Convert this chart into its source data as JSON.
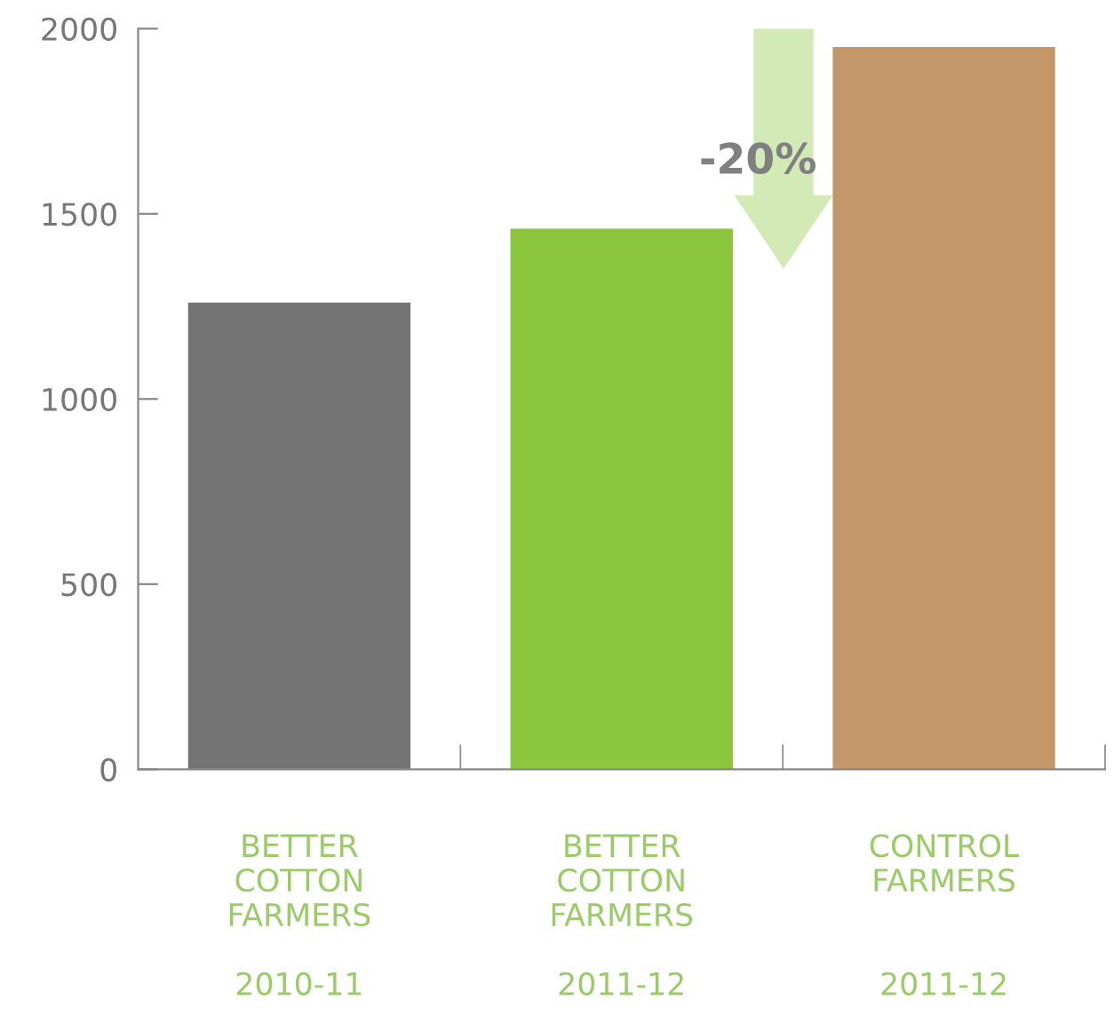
{
  "chart_data": {
    "type": "bar",
    "categories": [
      "BETTER\nCOTTON\nFARMERS\n\n2010-11",
      "BETTER\nCOTTON\nFARMERS\n\n2011-12",
      "CONTROL\nFARMERS\n\n\n2011-12"
    ],
    "values": [
      1260,
      1460,
      1950
    ],
    "colors": [
      "#747474",
      "#8cc63f",
      "#c4976a"
    ],
    "ylim": [
      0,
      2000
    ],
    "yticks": [
      0,
      500,
      1000,
      1500,
      2000
    ],
    "grid": false,
    "legend": false,
    "annotations": [
      "-20%"
    ]
  }
}
